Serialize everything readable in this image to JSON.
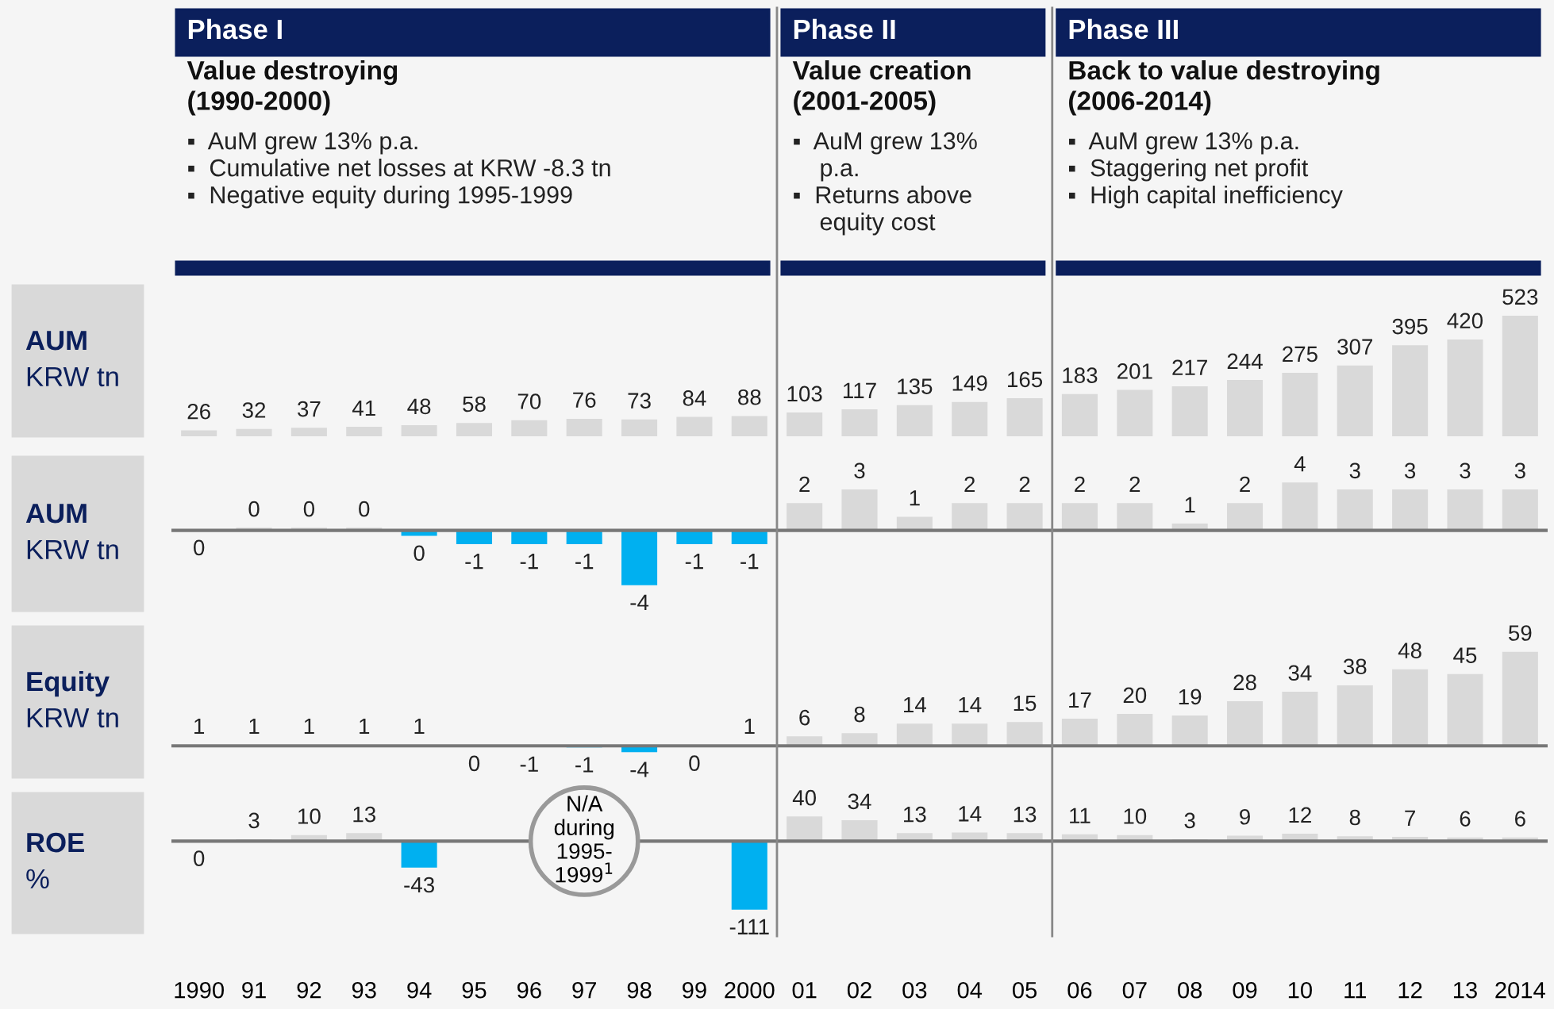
{
  "chart_data": [
    {
      "type": "bar",
      "ylabel": "AUM\nKRW tn",
      "tick_labels": false,
      "grid": false,
      "legend": false,
      "data_labels": true,
      "categories": [
        "1990",
        "91",
        "92",
        "93",
        "94",
        "95",
        "96",
        "97",
        "98",
        "99",
        "2000",
        "01",
        "02",
        "03",
        "04",
        "05",
        "06",
        "07",
        "08",
        "09",
        "10",
        "11",
        "12",
        "13",
        "2014"
      ],
      "series": [
        {
          "color": "#d9d9d9",
          "values": [
            26,
            32,
            37,
            41,
            48,
            58,
            70,
            76,
            73,
            84,
            88,
            103,
            117,
            135,
            149,
            165,
            183,
            201,
            217,
            244,
            275,
            307,
            395,
            420,
            523
          ]
        }
      ],
      "annotations": [
        "Phase I",
        "Value destroying\n(1990-2000)\n▪  AuM grew 13% p.a.\n▪  Cumulative net losses at KRW -8.3 tn\n▪  Negative equity during 1995-1999",
        "Phase II",
        "Value creation\n(2001-2005)\n▪  AuM grew 13%\n    p.a.\n▪  Returns above\n    equity cost",
        "Phase III",
        "Back to value destroying\n(2006-2014)\n▪  AuM grew 13% p.a.\n▪  Staggering net profit\n▪  High capital inefficiency"
      ]
    },
    {
      "type": "bar",
      "ylabel": "AUM\nKRW tn",
      "tick_labels": false,
      "grid": false,
      "legend": false,
      "categories": [
        "1990",
        "91",
        "92",
        "93",
        "94",
        "95",
        "96",
        "97",
        "98",
        "99",
        "2000",
        "01",
        "02",
        "03",
        "04",
        "05",
        "06",
        "07",
        "08",
        "09",
        "10",
        "11",
        "12",
        "13",
        "2014"
      ],
      "series": [
        {
          "colors": [
            "#d9d9d9",
            "#d9d9d9",
            "#d9d9d9",
            "#d9d9d9",
            "#00b0f0",
            "#00b0f0",
            "#00b0f0",
            "#00b0f0",
            "#00b0f0",
            "#00b0f0",
            "#00b0f0",
            "#d9d9d9",
            "#d9d9d9",
            "#d9d9d9",
            "#d9d9d9",
            "#d9d9d9",
            "#d9d9d9",
            "#d9d9d9",
            "#d9d9d9",
            "#d9d9d9",
            "#d9d9d9",
            "#d9d9d9",
            "#d9d9d9",
            "#d9d9d9",
            "#d9d9d9"
          ],
          "values": [
            0,
            0.2,
            0.2,
            0.2,
            -0.4,
            -1,
            -1,
            -1,
            -4,
            -1,
            -1,
            2,
            3,
            1,
            2,
            2,
            2,
            2,
            0.5,
            2,
            3.5,
            3,
            3,
            3,
            3
          ],
          "value_labels": [
            "0",
            "0",
            "0",
            "0",
            "0",
            "-1",
            "-1",
            "-1",
            "-4",
            "-1",
            "-1",
            "2",
            "3",
            "1",
            "2",
            "2",
            "2",
            "2",
            "1",
            "2",
            "4",
            "3",
            "3",
            "3",
            "3"
          ]
        }
      ]
    },
    {
      "type": "bar",
      "ylabel": "Equity\nKRW tn",
      "tick_labels": false,
      "grid": false,
      "legend": false,
      "categories": [
        "1990",
        "91",
        "92",
        "93",
        "94",
        "95",
        "96",
        "97",
        "98",
        "99",
        "2000",
        "01",
        "02",
        "03",
        "04",
        "05",
        "06",
        "07",
        "08",
        "09",
        "10",
        "11",
        "12",
        "13",
        "2014"
      ],
      "series": [
        {
          "colors": [
            "#d9d9d9",
            "#d9d9d9",
            "#d9d9d9",
            "#d9d9d9",
            "#d9d9d9",
            "#d9d9d9",
            "#00b0f0",
            "#00b0f0",
            "#00b0f0",
            "#00b0f0",
            "#d9d9d9",
            "#d9d9d9",
            "#d9d9d9",
            "#d9d9d9",
            "#d9d9d9",
            "#d9d9d9",
            "#d9d9d9",
            "#d9d9d9",
            "#d9d9d9",
            "#d9d9d9",
            "#d9d9d9",
            "#d9d9d9",
            "#d9d9d9",
            "#d9d9d9",
            "#d9d9d9"
          ],
          "values": [
            0.6,
            0.6,
            0.6,
            0.6,
            0.6,
            -0.2,
            -0.6,
            -1,
            -4,
            -0.1,
            0.6,
            6,
            8,
            14,
            14,
            15,
            17,
            20,
            19,
            28,
            34,
            38,
            48,
            45,
            59
          ],
          "value_labels": [
            "1",
            "1",
            "1",
            "1",
            "1",
            "0",
            "-1",
            "-1",
            "-4",
            "0",
            "1",
            "6",
            "8",
            "14",
            "14",
            "15",
            "17",
            "20",
            "19",
            "28",
            "34",
            "38",
            "48",
            "45",
            "59"
          ]
        }
      ]
    },
    {
      "type": "bar",
      "ylabel": "ROE\n%",
      "tick_labels": "x",
      "grid": false,
      "legend": false,
      "data_labels": true,
      "categories": [
        "1990",
        "91",
        "92",
        "93",
        "94",
        "95",
        "96",
        "97",
        "98",
        "99",
        "2000",
        "01",
        "02",
        "03",
        "04",
        "05",
        "06",
        "07",
        "08",
        "09",
        "10",
        "11",
        "12",
        "13",
        "2014"
      ],
      "series": [
        {
          "colors": [
            "#d9d9d9",
            "#d9d9d9",
            "#d9d9d9",
            "#d9d9d9",
            "#00b0f0",
            null,
            null,
            null,
            null,
            null,
            "#00b0f0",
            "#d9d9d9",
            "#d9d9d9",
            "#d9d9d9",
            "#d9d9d9",
            "#d9d9d9",
            "#d9d9d9",
            "#d9d9d9",
            "#d9d9d9",
            "#d9d9d9",
            "#d9d9d9",
            "#d9d9d9",
            "#d9d9d9",
            "#d9d9d9",
            "#d9d9d9"
          ],
          "values": [
            0,
            3,
            10,
            13,
            -43,
            null,
            null,
            null,
            null,
            null,
            -111,
            40,
            34,
            13,
            14,
            13,
            11,
            10,
            3,
            9,
            12,
            8,
            7,
            6,
            6
          ]
        }
      ],
      "annotations": [
        "N/A\nduring\n1995-\n1999$^{1}$"
      ]
    }
  ]
}
